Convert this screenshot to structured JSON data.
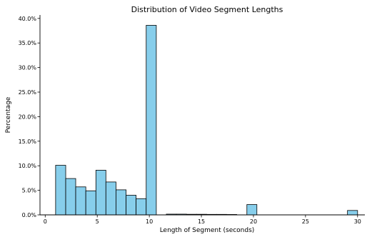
{
  "chart_data": {
    "type": "bar",
    "title": "Distribution of Video Segment Lengths",
    "xlabel": "Length of Segment (seconds)",
    "ylabel": "Percentage",
    "xlim": [
      -0.5,
      30.7
    ],
    "ylim": [
      0,
      40.7
    ],
    "xticks": [
      0,
      5,
      10,
      15,
      20,
      25,
      30
    ],
    "xtick_labels": [
      "0",
      "5",
      "10",
      "15",
      "20",
      "25",
      "30"
    ],
    "yticks": [
      0,
      5,
      10,
      15,
      20,
      25,
      30,
      35,
      40
    ],
    "ytick_labels": [
      "0.0%",
      "5.0%",
      "10.0%",
      "15.0%",
      "20.0%",
      "25.0%",
      "30.0%",
      "35.0%",
      "40.0%"
    ],
    "grid": false,
    "bar_color": "#87ceeb",
    "edge_color": "#000000",
    "bins": [
      {
        "x0": 1.0,
        "x1": 1.97,
        "value": 10.1
      },
      {
        "x0": 1.97,
        "x1": 2.93,
        "value": 7.4
      },
      {
        "x0": 2.93,
        "x1": 3.9,
        "value": 5.7
      },
      {
        "x0": 3.9,
        "x1": 4.87,
        "value": 4.9
      },
      {
        "x0": 4.87,
        "x1": 5.83,
        "value": 9.1
      },
      {
        "x0": 5.83,
        "x1": 6.8,
        "value": 6.7
      },
      {
        "x0": 6.8,
        "x1": 7.77,
        "value": 5.1
      },
      {
        "x0": 7.77,
        "x1": 8.73,
        "value": 4.0
      },
      {
        "x0": 8.73,
        "x1": 9.7,
        "value": 3.3
      },
      {
        "x0": 9.7,
        "x1": 10.67,
        "value": 38.6
      },
      {
        "x0": 10.67,
        "x1": 11.63,
        "value": 0.0
      },
      {
        "x0": 11.63,
        "x1": 12.6,
        "value": 0.15
      },
      {
        "x0": 12.6,
        "x1": 13.57,
        "value": 0.15
      },
      {
        "x0": 13.57,
        "x1": 14.53,
        "value": 0.12
      },
      {
        "x0": 14.53,
        "x1": 15.5,
        "value": 0.12
      },
      {
        "x0": 15.5,
        "x1": 16.47,
        "value": 0.1
      },
      {
        "x0": 16.47,
        "x1": 17.43,
        "value": 0.1
      },
      {
        "x0": 17.43,
        "x1": 18.4,
        "value": 0.08
      },
      {
        "x0": 18.4,
        "x1": 19.37,
        "value": 0.0
      },
      {
        "x0": 19.37,
        "x1": 20.33,
        "value": 2.1
      },
      {
        "x0": 20.33,
        "x1": 21.3,
        "value": 0.0
      },
      {
        "x0": 21.3,
        "x1": 22.27,
        "value": 0.0
      },
      {
        "x0": 22.27,
        "x1": 23.23,
        "value": 0.0
      },
      {
        "x0": 23.23,
        "x1": 24.2,
        "value": 0.0
      },
      {
        "x0": 24.2,
        "x1": 25.17,
        "value": 0.0
      },
      {
        "x0": 25.17,
        "x1": 26.13,
        "value": 0.0
      },
      {
        "x0": 26.13,
        "x1": 27.1,
        "value": 0.0
      },
      {
        "x0": 27.1,
        "x1": 28.07,
        "value": 0.0
      },
      {
        "x0": 28.07,
        "x1": 29.03,
        "value": 0.0
      },
      {
        "x0": 29.03,
        "x1": 30.0,
        "value": 0.9
      }
    ]
  }
}
